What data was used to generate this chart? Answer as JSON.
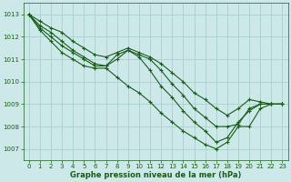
{
  "title": "Graphe pression niveau de la mer (hPa)",
  "bg_color": "#cce8e8",
  "grid_color": "#aad0d0",
  "line_color": "#1a5c1a",
  "xlim": [
    -0.5,
    23.5
  ],
  "ylim": [
    1006.5,
    1013.5
  ],
  "yticks": [
    1007,
    1008,
    1009,
    1010,
    1011,
    1012,
    1013
  ],
  "xticks": [
    0,
    1,
    2,
    3,
    4,
    5,
    6,
    7,
    8,
    9,
    10,
    11,
    12,
    13,
    14,
    15,
    16,
    17,
    18,
    19,
    20,
    21,
    22,
    23
  ],
  "lines": [
    {
      "x": [
        0,
        1,
        2,
        3,
        4,
        5,
        6,
        7,
        8,
        9,
        10,
        11,
        12,
        13,
        14,
        15,
        16,
        17,
        18,
        19,
        20,
        21,
        22,
        23
      ],
      "y": [
        1013.0,
        1012.7,
        1012.4,
        1012.2,
        1011.8,
        1011.5,
        1011.2,
        1011.1,
        1011.3,
        1011.5,
        1011.3,
        1011.1,
        1010.8,
        1010.4,
        1010.0,
        1009.5,
        1009.2,
        1008.8,
        1008.5,
        1008.8,
        1009.2,
        1009.1,
        1009.0,
        1009.0
      ]
    },
    {
      "x": [
        0,
        1,
        2,
        3,
        4,
        5,
        6,
        7,
        8,
        9,
        10,
        11,
        12,
        13,
        14,
        15,
        16,
        17,
        18,
        19,
        20,
        21,
        22,
        23
      ],
      "y": [
        1013.0,
        1012.5,
        1012.2,
        1011.8,
        1011.4,
        1011.1,
        1010.8,
        1010.7,
        1011.0,
        1011.4,
        1011.2,
        1011.0,
        1010.5,
        1009.9,
        1009.4,
        1008.8,
        1008.4,
        1008.0,
        1008.0,
        1008.1,
        1008.8,
        1009.0,
        1009.0,
        1009.0
      ]
    },
    {
      "x": [
        0,
        1,
        2,
        3,
        4,
        5,
        6,
        7,
        8,
        9,
        10,
        11,
        12,
        13,
        14,
        15,
        16,
        17,
        18,
        19,
        20,
        21,
        22,
        23
      ],
      "y": [
        1013.0,
        1012.4,
        1012.0,
        1011.6,
        1011.3,
        1011.0,
        1010.7,
        1010.7,
        1011.2,
        1011.4,
        1011.1,
        1010.5,
        1009.8,
        1009.3,
        1008.7,
        1008.2,
        1007.8,
        1007.3,
        1007.5,
        1008.2,
        1008.7,
        1009.0,
        1009.0,
        1009.0
      ]
    },
    {
      "x": [
        0,
        1,
        2,
        3,
        4,
        5,
        6,
        7,
        8,
        9,
        10,
        11,
        12,
        13,
        14,
        15,
        16,
        17,
        18,
        19,
        20,
        21,
        22,
        23
      ],
      "y": [
        1013.0,
        1012.3,
        1011.8,
        1011.3,
        1011.0,
        1010.7,
        1010.6,
        1010.6,
        1010.2,
        1009.8,
        1009.5,
        1009.1,
        1008.6,
        1008.2,
        1007.8,
        1007.5,
        1007.2,
        1007.0,
        1007.3,
        1008.0,
        1008.0,
        1008.8,
        1009.0,
        1009.0
      ]
    }
  ]
}
